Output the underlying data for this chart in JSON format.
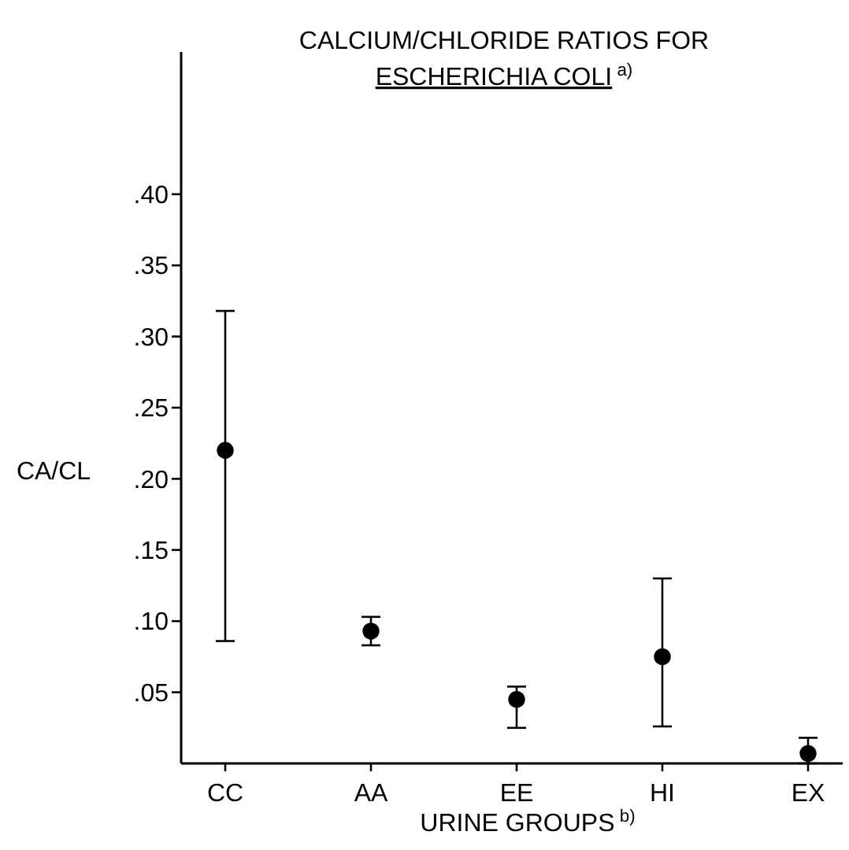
{
  "chart_data": {
    "type": "scatter",
    "title": "CALCIUM/CHLORIDE RATIOS FOR ESCHERICHIA COLI$^{a)}$",
    "xlabel": "URINE GROUPS$^{b)}$",
    "ylabel": "CA/CL",
    "categories": [
      "CC",
      "AA",
      "EE",
      "HI",
      "EX"
    ],
    "series": [
      {
        "color": "#000000",
        "values": [
          0.22,
          0.093,
          0.045,
          0.075,
          0.007
        ],
        "errors": [
          [
            0.086,
            0.318
          ],
          [
            0.083,
            0.103
          ],
          [
            0.025,
            0.054
          ],
          [
            0.026,
            0.13
          ],
          [
            0,
            0.018
          ]
        ]
      }
    ],
    "ylim": [
      0,
      0.5
    ],
    "yticks": [
      {
        "value": 0.05,
        "label": ".05"
      },
      {
        "value": 0.1,
        "label": ".10"
      },
      {
        "value": 0.15,
        "label": ".15"
      },
      {
        "value": 0.2,
        "label": ".20"
      },
      {
        "value": 0.25,
        "label": ".25"
      },
      {
        "value": 0.3,
        "label": ".30"
      },
      {
        "value": 0.35,
        "label": ".35"
      },
      {
        "value": 0.4,
        "label": ".40"
      }
    ],
    "grid": false,
    "marker": "circle"
  }
}
